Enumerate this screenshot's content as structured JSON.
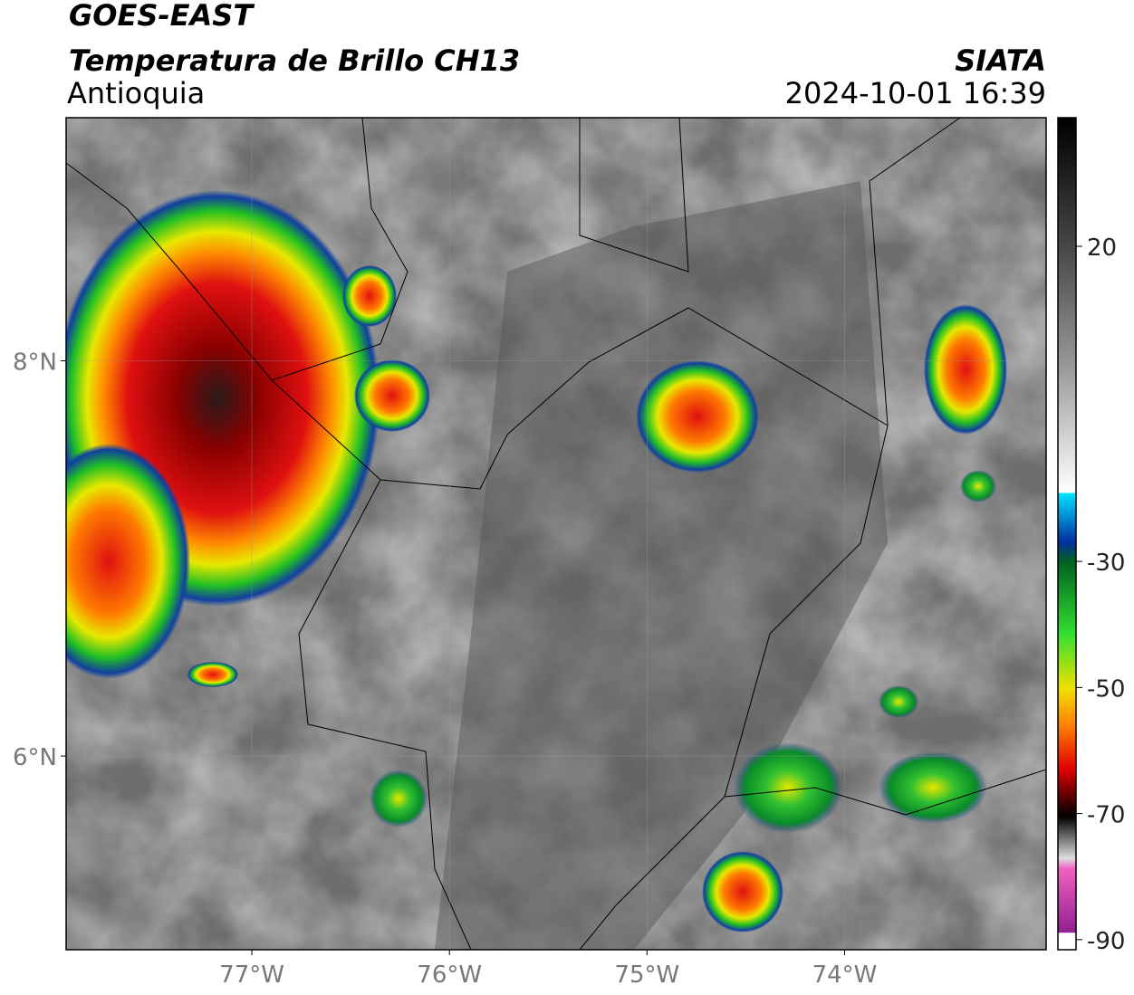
{
  "header": {
    "title": "GOES-EAST",
    "subtitle": "Temperatura de Brillo CH13",
    "region": "Antioquia",
    "source": "SIATA",
    "datetime": "2024-10-01 16:39"
  },
  "map": {
    "xlim": [
      -77.94,
      -72.98
    ],
    "ylim": [
      5.02,
      9.23
    ],
    "xticks": [
      {
        "value": -77,
        "label": "77°W"
      },
      {
        "value": -76,
        "label": "76°W"
      },
      {
        "value": -75,
        "label": "75°W"
      },
      {
        "value": -74,
        "label": "74°W"
      }
    ],
    "yticks": [
      {
        "value": 8,
        "label": "8°N"
      },
      {
        "value": 6,
        "label": "6°N"
      }
    ],
    "grid": true
  },
  "colorbar": {
    "lim": [
      -91.6,
      40.4
    ],
    "ticks": [
      20,
      -30,
      -50,
      -70,
      -90
    ]
  }
}
